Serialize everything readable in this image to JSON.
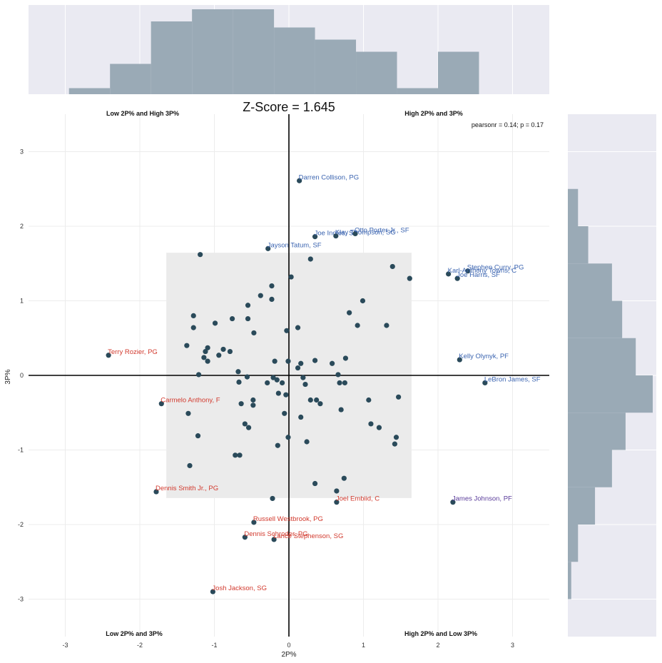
{
  "chart_data": {
    "type": "scatter",
    "title": "Z-Score = 1.645",
    "xlabel": "2P%",
    "ylabel": "3P%",
    "xlim": [
      -3.5,
      3.5
    ],
    "ylim": [
      -3.5,
      3.5
    ],
    "xticks": [
      -3,
      -2,
      -1,
      0,
      1,
      2,
      3
    ],
    "yticks": [
      -3,
      -2,
      -1,
      0,
      1,
      2,
      3
    ],
    "xtick_labels": [
      "-3",
      "-2",
      "-1",
      "0",
      "1",
      "2",
      "3"
    ],
    "ytick_labels": [
      "-3",
      "-2",
      "-1",
      "0",
      "1",
      "2",
      "3"
    ],
    "grid": true,
    "stats_text": "pearsonr = 0.14; p = 0.17",
    "zscore_band": 1.645,
    "quadrant_labels": {
      "top_left": "Low 2P% and High 3P%",
      "top_right": "High 2P% and 3P%",
      "bottom_left": "Low 2P% and 3P%",
      "bottom_right": "High 2P% and Low 3P%"
    },
    "colors": {
      "point": "#2a4a5a",
      "background": "#eaeaf2",
      "band": "#ebebeb",
      "hist": "#9aaab6",
      "label_blue": "#3b64b0",
      "label_red": "#d23a2e",
      "label_purple": "#5b3d9b"
    },
    "labeled_points": [
      {
        "label": "Darren Collison, PG",
        "x": 0.14,
        "y": 2.61,
        "color": "blue"
      },
      {
        "label": "Joe Ingles, SF",
        "x": 0.35,
        "y": 1.86,
        "color": "blue"
      },
      {
        "label": "Klay Thompson, SG",
        "x": 0.63,
        "y": 1.87,
        "color": "blue"
      },
      {
        "label": "Otto Porter Jr., SF",
        "x": 0.89,
        "y": 1.9,
        "color": "blue"
      },
      {
        "label": "Jayson Tatum, SF",
        "x": -0.28,
        "y": 1.7,
        "color": "blue"
      },
      {
        "label": "Stephen Curry, PG",
        "x": 2.4,
        "y": 1.4,
        "color": "blue"
      },
      {
        "label": "Karl-Anthony Towns, C",
        "x": 2.14,
        "y": 1.36,
        "color": "blue"
      },
      {
        "label": "Joe Harris, SF",
        "x": 2.26,
        "y": 1.3,
        "color": "blue"
      },
      {
        "label": "Kelly Olynyk, PF",
        "x": 2.29,
        "y": 0.21,
        "color": "blue"
      },
      {
        "label": "LeBron James, SF",
        "x": 2.63,
        "y": -0.1,
        "color": "blue"
      },
      {
        "label": "Terry Rozier, PG",
        "x": -2.42,
        "y": 0.27,
        "color": "red"
      },
      {
        "label": "Carmelo Anthony, F",
        "x": -1.71,
        "y": -0.38,
        "color": "red"
      },
      {
        "label": "Dennis Smith Jr., PG",
        "x": -1.78,
        "y": -1.56,
        "color": "red"
      },
      {
        "label": "Joel Embiid, C",
        "x": 0.64,
        "y": -1.7,
        "color": "red"
      },
      {
        "label": "Russell Westbrook, PG",
        "x": -0.47,
        "y": -1.97,
        "color": "red"
      },
      {
        "label": "Dennis Schroder, PG",
        "x": -0.59,
        "y": -2.17,
        "color": "red"
      },
      {
        "label": "Lance Stephenson, SG",
        "x": -0.2,
        "y": -2.2,
        "color": "red"
      },
      {
        "label": "Josh Jackson, SG",
        "x": -1.02,
        "y": -2.9,
        "color": "red"
      },
      {
        "label": "James Johnson, PF",
        "x": 2.2,
        "y": -1.7,
        "color": "purple"
      }
    ],
    "points": [
      [
        -1.19,
        1.62
      ],
      [
        0.29,
        1.56
      ],
      [
        1.39,
        1.46
      ],
      [
        1.62,
        1.3
      ],
      [
        0.03,
        1.32
      ],
      [
        -0.38,
        1.07
      ],
      [
        -0.23,
        1.2
      ],
      [
        -0.23,
        1.02
      ],
      [
        -0.55,
        0.94
      ],
      [
        0.99,
        1.0
      ],
      [
        -1.28,
        0.8
      ],
      [
        -0.76,
        0.76
      ],
      [
        -0.55,
        0.76
      ],
      [
        0.81,
        0.84
      ],
      [
        -0.99,
        0.7
      ],
      [
        -1.28,
        0.64
      ],
      [
        0.92,
        0.67
      ],
      [
        1.31,
        0.67
      ],
      [
        0.12,
        0.64
      ],
      [
        -0.47,
        0.57
      ],
      [
        -0.03,
        0.6
      ],
      [
        -1.37,
        0.4
      ],
      [
        -1.09,
        0.37
      ],
      [
        -1.12,
        0.32
      ],
      [
        -0.88,
        0.35
      ],
      [
        -0.79,
        0.32
      ],
      [
        -0.94,
        0.27
      ],
      [
        -1.14,
        0.24
      ],
      [
        -1.09,
        0.19
      ],
      [
        -0.19,
        0.19
      ],
      [
        -0.01,
        0.19
      ],
      [
        0.16,
        0.16
      ],
      [
        0.35,
        0.2
      ],
      [
        0.58,
        0.16
      ],
      [
        0.76,
        0.23
      ],
      [
        0.12,
        0.1
      ],
      [
        -1.21,
        0.01
      ],
      [
        -0.68,
        0.05
      ],
      [
        -0.56,
        -0.02
      ],
      [
        -0.21,
        -0.03
      ],
      [
        -0.16,
        -0.06
      ],
      [
        -0.09,
        -0.1
      ],
      [
        0.19,
        -0.03
      ],
      [
        0.22,
        -0.12
      ],
      [
        0.66,
        0.01
      ],
      [
        -0.67,
        -0.09
      ],
      [
        -0.29,
        -0.1
      ],
      [
        0.68,
        -0.1
      ],
      [
        0.75,
        -0.1
      ],
      [
        -0.14,
        -0.24
      ],
      [
        -0.04,
        -0.26
      ],
      [
        -0.48,
        -0.33
      ],
      [
        0.29,
        -0.33
      ],
      [
        0.37,
        -0.33
      ],
      [
        0.42,
        -0.38
      ],
      [
        1.07,
        -0.33
      ],
      [
        1.47,
        -0.29
      ],
      [
        -0.64,
        -0.38
      ],
      [
        -0.48,
        -0.4
      ],
      [
        0.7,
        -0.46
      ],
      [
        -1.35,
        -0.51
      ],
      [
        -0.06,
        -0.51
      ],
      [
        0.16,
        -0.56
      ],
      [
        -0.59,
        -0.65
      ],
      [
        -0.54,
        -0.7
      ],
      [
        1.1,
        -0.65
      ],
      [
        1.21,
        -0.7
      ],
      [
        -1.22,
        -0.81
      ],
      [
        -0.01,
        -0.83
      ],
      [
        1.44,
        -0.83
      ],
      [
        0.24,
        -0.89
      ],
      [
        1.42,
        -0.92
      ],
      [
        -0.15,
        -0.94
      ],
      [
        -0.72,
        -1.07
      ],
      [
        -0.66,
        -1.07
      ],
      [
        -1.33,
        -1.21
      ],
      [
        0.74,
        -1.38
      ],
      [
        0.35,
        -1.45
      ],
      [
        0.64,
        -1.55
      ],
      [
        -0.22,
        -1.65
      ]
    ],
    "x_hist": {
      "bin_edges": [
        -2.95,
        -2.4,
        -1.85,
        -1.3,
        -0.75,
        -0.2,
        0.35,
        0.9,
        1.45,
        2.0,
        2.55
      ],
      "counts": [
        1,
        5,
        12,
        14,
        14,
        11,
        9,
        7,
        1,
        7
      ]
    },
    "y_hist": {
      "bin_edges": [
        -3.0,
        -2.5,
        -2.0,
        -1.5,
        -1.0,
        -0.5,
        0.0,
        0.5,
        1.0,
        1.5,
        2.0,
        2.5
      ],
      "counts": [
        1,
        3,
        8,
        13,
        17,
        25,
        20,
        16,
        13,
        6,
        3
      ]
    }
  }
}
